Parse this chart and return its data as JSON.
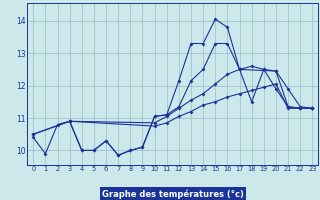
{
  "xlabel": "Graphe des températures (°c)",
  "background_color": "#cce8ea",
  "grid_color": "#99bbcc",
  "line_color": "#1a3399",
  "xlim": [
    -0.5,
    23.5
  ],
  "ylim": [
    9.55,
    14.55
  ],
  "xticks": [
    0,
    1,
    2,
    3,
    4,
    5,
    6,
    7,
    8,
    9,
    10,
    11,
    12,
    13,
    14,
    15,
    16,
    17,
    18,
    19,
    20,
    21,
    22,
    23
  ],
  "yticks": [
    10,
    11,
    12,
    13,
    14
  ],
  "line1_x": [
    0,
    1,
    2,
    3,
    4,
    5,
    6,
    7,
    8,
    9,
    10,
    11,
    12,
    13,
    14,
    15,
    16,
    17,
    18,
    19,
    20,
    21,
    22,
    23
  ],
  "line1_y": [
    10.4,
    9.9,
    10.8,
    10.9,
    10.0,
    10.0,
    10.3,
    9.85,
    10.0,
    10.1,
    11.05,
    11.1,
    11.35,
    12.15,
    12.5,
    13.3,
    13.3,
    12.5,
    11.5,
    12.5,
    11.9,
    11.35,
    11.3,
    11.3
  ],
  "line2_x": [
    0,
    3,
    10,
    11,
    12,
    13,
    14,
    15,
    16,
    17,
    18,
    19,
    20,
    21,
    22,
    23
  ],
  "line2_y": [
    10.5,
    10.9,
    10.85,
    11.05,
    11.3,
    11.55,
    11.75,
    12.05,
    12.35,
    12.5,
    12.6,
    12.5,
    12.45,
    11.35,
    11.3,
    11.3
  ],
  "line3_x": [
    0,
    3,
    10,
    11,
    12,
    13,
    14,
    15,
    16,
    17,
    18,
    19,
    20,
    21,
    22,
    23
  ],
  "line3_y": [
    10.5,
    10.9,
    10.75,
    10.85,
    11.05,
    11.2,
    11.4,
    11.5,
    11.65,
    11.75,
    11.85,
    11.95,
    12.05,
    11.3,
    11.3,
    11.3
  ],
  "line4_x": [
    3,
    4,
    5,
    6,
    7,
    8,
    9,
    10,
    11,
    12,
    13,
    14,
    15,
    16,
    17,
    20,
    21,
    22,
    23
  ],
  "line4_y": [
    10.9,
    10.0,
    10.0,
    10.3,
    9.85,
    10.0,
    10.1,
    11.05,
    11.1,
    12.15,
    13.3,
    13.3,
    14.05,
    13.8,
    12.5,
    12.45,
    11.9,
    11.35,
    11.3
  ]
}
